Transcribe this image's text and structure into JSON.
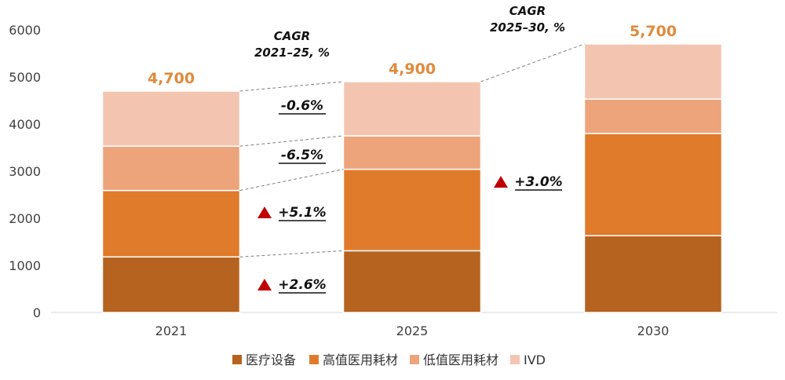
{
  "chart_data": {
    "type": "bar",
    "stacked": true,
    "categories": [
      "2021",
      "2025",
      "2030"
    ],
    "series": [
      {
        "name": "医疗设备",
        "color": "#b5631f",
        "values": [
          1180,
          1310,
          1630
        ]
      },
      {
        "name": "高值医用耗材",
        "color": "#e07b2c",
        "values": [
          1410,
          1730,
          2170
        ]
      },
      {
        "name": "低值医用耗材",
        "color": "#eda47b",
        "values": [
          940,
          710,
          730
        ]
      },
      {
        "name": "IVD",
        "color": "#f3c5b0",
        "values": [
          1170,
          1150,
          1170
        ]
      }
    ],
    "totals": [
      "4,700",
      "4,900",
      "5,700"
    ],
    "yticks": [
      "0",
      "1000",
      "2000",
      "3000",
      "4000",
      "5000",
      "6000"
    ],
    "ylim": [
      0,
      6000
    ],
    "legend_position": "bottom",
    "annotations": {
      "cagr_2021_25": {
        "title": "CAGR",
        "subtitle": "2021–25, %",
        "rates": [
          {
            "label": "-0.6%",
            "series": "IVD",
            "trend": "down"
          },
          {
            "label": "-6.5%",
            "series": "低值医用耗材",
            "trend": "down"
          },
          {
            "label": "+5.1%",
            "series": "高值医用耗材",
            "trend": "up"
          },
          {
            "label": "+2.6%",
            "series": "医疗设备",
            "trend": "up"
          }
        ]
      },
      "cagr_2025_30": {
        "title": "CAGR",
        "subtitle": "2025–30, %",
        "rates": [
          {
            "label": "+3.0%",
            "series": "total",
            "trend": "up"
          }
        ]
      }
    },
    "marker_color": "#c00000"
  }
}
